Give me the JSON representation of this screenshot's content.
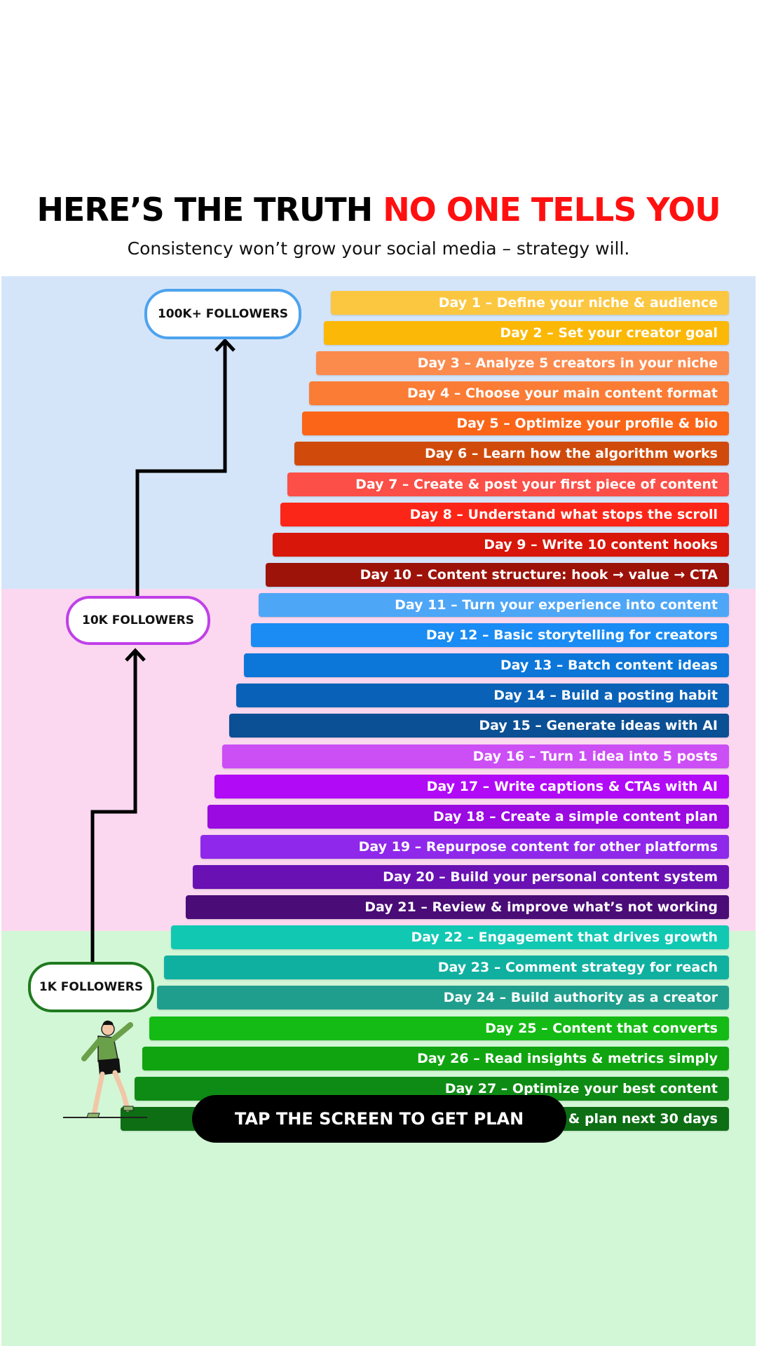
{
  "headline": {
    "part1": "HERE’S THE TRUTH ",
    "part2": "NO ONE TELLS YOU"
  },
  "subheadline": "Consistency won’t grow your social media – strategy will.",
  "milestones": {
    "top": "100K+ FOLLOWERS",
    "middle": "10K FOLLOWERS",
    "bottom": "1K FOLLOWERS"
  },
  "colors": {
    "accent": "#ff1010",
    "zone_top": "#d5e5f9",
    "zone_middle": "#fbd8f0",
    "zone_bottom": "#d2f7d6",
    "milestone_top_border": "#4da3ee",
    "milestone_middle_border": "#c040e8",
    "milestone_bottom_border": "#1f7a1f"
  },
  "days": [
    {
      "label": "Day 1 – Define your niche & audience",
      "color": "#fcc740"
    },
    {
      "label": "Day 2 – Set your creator goal",
      "color": "#fbb806"
    },
    {
      "label": "Day 3 – Analyze 5 creators in your niche",
      "color": "#fb8a4d"
    },
    {
      "label": "Day 4 – Choose your main content format",
      "color": "#fb7c35"
    },
    {
      "label": "Day 5 – Optimize your profile & bio",
      "color": "#fa6518"
    },
    {
      "label": "Day 6 – Learn how the algorithm works",
      "color": "#d04b0b"
    },
    {
      "label": "Day 7 – Create & post your first piece of content",
      "color": "#fb4f48"
    },
    {
      "label": "Day 8 – Understand what stops the scroll",
      "color": "#fb2618"
    },
    {
      "label": "Day 9 – Write 10 content hooks",
      "color": "#d8160a"
    },
    {
      "label": "Day 10 – Content structure: hook → value → CTA",
      "color": "#9d1209"
    },
    {
      "label": "Day 11 – Turn your experience into content",
      "color": "#4ea6f7"
    },
    {
      "label": "Day 12 – Basic storytelling for creators",
      "color": "#1a8cf3"
    },
    {
      "label": "Day 13 – Batch content ideas",
      "color": "#0c76d9"
    },
    {
      "label": "Day 14 – Build a posting habit",
      "color": "#0a62b8"
    },
    {
      "label": "Day 15 – Generate ideas with AI",
      "color": "#0b4f94"
    },
    {
      "label": "Day 16 – Turn 1 idea into 5 posts",
      "color": "#cc4ef5"
    },
    {
      "label": "Day 17 – Write captions & CTAs with AI",
      "color": "#b10af6"
    },
    {
      "label": "Day 18 – Create a simple content plan",
      "color": "#9a0ae1"
    },
    {
      "label": "Day 19 – Repurpose content for other platforms",
      "color": "#8f28ea"
    },
    {
      "label": "Day 20 – Build your personal content system",
      "color": "#6911b3"
    },
    {
      "label": "Day 21 – Review & improve what’s not working",
      "color": "#4a0c77"
    },
    {
      "label": "Day 22 – Engagement that drives growth",
      "color": "#11c8b3"
    },
    {
      "label": "Day 23 – Comment strategy for reach",
      "color": "#10b0a0"
    },
    {
      "label": "Day 24 – Build authority as a creator",
      "color": "#209e8d"
    },
    {
      "label": "Day 25 – Content that converts",
      "color": "#14bb14"
    },
    {
      "label": "Day 26 – Read insights & metrics simply",
      "color": "#10a510"
    },
    {
      "label": "Day 27 – Optimize your best content",
      "color": "#0e8b14"
    },
    {
      "label": "Day 28 – Review growth & plan next 30 days",
      "color": "#0d6e14"
    }
  ],
  "cta": {
    "label": "TAP THE SCREEN TO GET PLAN"
  },
  "icons": {
    "figure": "climbing-person-icon",
    "arrow": "growth-path-arrow-icon"
  }
}
